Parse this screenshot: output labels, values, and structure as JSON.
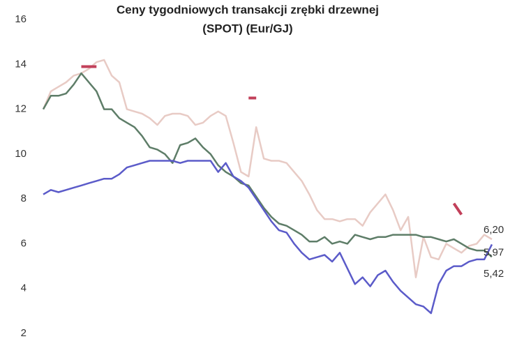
{
  "chart_data": {
    "type": "line",
    "title_lines": [
      "Ceny tygodniowych transakcji zrębki drzewnej",
      "(SPOT) (Eur/GJ)"
    ],
    "ylim": [
      2,
      16
    ],
    "yticks": [
      2,
      4,
      6,
      8,
      10,
      12,
      14,
      16
    ],
    "series": [
      {
        "color": "#e8cbc5",
        "values": [
          12.0,
          12.8,
          13.0,
          13.2,
          13.5,
          13.6,
          13.8,
          14.1,
          14.2,
          13.5,
          13.2,
          12.0,
          11.9,
          11.8,
          11.6,
          11.3,
          11.7,
          11.8,
          11.8,
          11.7,
          11.3,
          11.4,
          11.7,
          11.9,
          11.7,
          10.5,
          9.2,
          9.0,
          11.2,
          9.8,
          9.7,
          9.7,
          9.6,
          9.2,
          8.8,
          8.2,
          7.5,
          7.1,
          7.1,
          7.0,
          7.1,
          7.1,
          6.8,
          7.4,
          7.8,
          8.2,
          7.5,
          6.6,
          7.2,
          4.5,
          6.3,
          5.4,
          5.3,
          6.0,
          5.8,
          5.6,
          5.9,
          6.0,
          6.4,
          6.2
        ],
        "value_labels": [
          null,
          null,
          null,
          null,
          null,
          null,
          null,
          null,
          null,
          null,
          null,
          null,
          null,
          null,
          null,
          null,
          null,
          null,
          null,
          null,
          null,
          null,
          null,
          null,
          null,
          null,
          null,
          null,
          null,
          null,
          null,
          null,
          null,
          null,
          null,
          null,
          null,
          null,
          null,
          null,
          null,
          null,
          null,
          null,
          null,
          null,
          null,
          null,
          null,
          null,
          null,
          null,
          null,
          null,
          null,
          null,
          null,
          null,
          null,
          "6,20"
        ]
      },
      {
        "color": "#5e7d68",
        "values": [
          12.0,
          12.6,
          12.6,
          12.7,
          13.1,
          13.6,
          13.2,
          12.8,
          12.0,
          12.0,
          11.6,
          11.4,
          11.2,
          10.8,
          10.3,
          10.2,
          10.0,
          9.6,
          10.4,
          10.5,
          10.7,
          10.3,
          10.0,
          9.5,
          9.2,
          9.0,
          8.7,
          8.6,
          8.1,
          7.6,
          7.2,
          6.9,
          6.8,
          6.6,
          6.4,
          6.1,
          6.1,
          6.3,
          6.0,
          6.1,
          6.0,
          6.4,
          6.3,
          6.2,
          6.3,
          6.3,
          6.4,
          6.4,
          6.4,
          6.4,
          6.3,
          6.3,
          6.2,
          6.1,
          6.2,
          6.0,
          5.8,
          5.7,
          5.7,
          5.42
        ],
        "value_labels": [
          null,
          null,
          null,
          null,
          null,
          null,
          null,
          null,
          null,
          null,
          null,
          null,
          null,
          null,
          null,
          null,
          null,
          null,
          null,
          null,
          null,
          null,
          null,
          null,
          null,
          null,
          null,
          null,
          null,
          null,
          null,
          null,
          null,
          null,
          null,
          null,
          null,
          null,
          null,
          null,
          null,
          null,
          null,
          null,
          null,
          null,
          null,
          null,
          null,
          null,
          null,
          null,
          null,
          null,
          null,
          null,
          null,
          null,
          null,
          "5,42"
        ]
      },
      {
        "color": "#5b5bc9",
        "values": [
          8.2,
          8.4,
          8.3,
          8.4,
          8.5,
          8.6,
          8.7,
          8.8,
          8.9,
          8.9,
          9.1,
          9.4,
          9.5,
          9.6,
          9.7,
          9.7,
          9.7,
          9.7,
          9.6,
          9.7,
          9.7,
          9.7,
          9.7,
          9.2,
          9.6,
          9.0,
          8.8,
          8.5,
          8.0,
          7.5,
          7.0,
          6.6,
          6.5,
          6.0,
          5.6,
          5.3,
          5.4,
          5.5,
          5.2,
          5.6,
          4.9,
          4.2,
          4.5,
          4.1,
          4.6,
          4.8,
          4.3,
          3.9,
          3.6,
          3.3,
          3.2,
          2.9,
          4.2,
          4.8,
          5.0,
          5.0,
          5.2,
          5.3,
          5.3,
          5.97
        ],
        "value_labels": [
          null,
          null,
          null,
          null,
          null,
          null,
          null,
          null,
          null,
          null,
          null,
          null,
          null,
          null,
          null,
          null,
          null,
          null,
          null,
          null,
          null,
          null,
          null,
          null,
          null,
          null,
          null,
          null,
          null,
          null,
          null,
          null,
          null,
          null,
          null,
          null,
          null,
          null,
          null,
          null,
          null,
          null,
          null,
          null,
          null,
          null,
          null,
          null,
          null,
          null,
          null,
          null,
          null,
          null,
          null,
          null,
          null,
          null,
          null,
          "5,97"
        ]
      },
      {
        "color": "#c2405a",
        "values": [
          null,
          null,
          null,
          null,
          null,
          13.9,
          13.9,
          13.9,
          null,
          null,
          null,
          null,
          null,
          null,
          null,
          null,
          null,
          null,
          null,
          null,
          null,
          null,
          null,
          null,
          null,
          null,
          null,
          12.5,
          12.5,
          null,
          null,
          null,
          null,
          null,
          null,
          null,
          null,
          null,
          null,
          null,
          null,
          null,
          null,
          null,
          null,
          null,
          null,
          null,
          null,
          null,
          null,
          null,
          null,
          null,
          7.8,
          7.3,
          null,
          null,
          null,
          null
        ]
      }
    ]
  }
}
